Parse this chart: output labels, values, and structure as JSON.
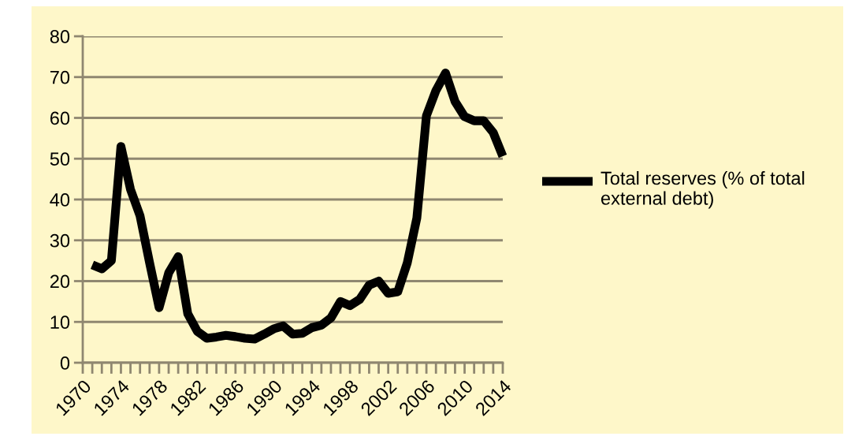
{
  "chart_data": {
    "type": "line",
    "x": [
      1971,
      1972,
      1973,
      1974,
      1975,
      1976,
      1977,
      1978,
      1979,
      1980,
      1981,
      1982,
      1983,
      1984,
      1985,
      1986,
      1987,
      1988,
      1989,
      1990,
      1991,
      1992,
      1993,
      1994,
      1995,
      1996,
      1997,
      1998,
      1999,
      2000,
      2001,
      2002,
      2003,
      2004,
      2005,
      2006,
      2007,
      2008,
      2009,
      2010,
      2011,
      2012,
      2013,
      2014
    ],
    "series": [
      {
        "name": "Total reserves (% of total external debt)",
        "color": "#000000",
        "values": [
          24,
          23,
          25,
          53,
          42.5,
          36,
          24.5,
          13.5,
          22,
          26,
          12,
          7.7,
          6,
          6.3,
          6.7,
          6.4,
          6,
          5.8,
          7,
          8.3,
          9,
          7,
          7.2,
          8.6,
          9.2,
          11,
          15,
          14,
          15.5,
          19,
          20,
          17,
          17.4,
          24.5,
          35.5,
          60.5,
          66.7,
          71,
          64,
          60.3,
          59.3,
          59.3,
          56.4,
          50.6
        ]
      }
    ],
    "xlim": [
      1970,
      2014
    ],
    "xticks": [
      1970,
      {
        "value": 1971,
        "label": null
      },
      {
        "value": 1972,
        "label": null
      },
      {
        "value": 1973,
        "label": null
      },
      1974,
      {
        "value": 1975,
        "label": null
      },
      {
        "value": 1976,
        "label": null
      },
      {
        "value": 1977,
        "label": null
      },
      1978,
      {
        "value": 1979,
        "label": null
      },
      {
        "value": 1980,
        "label": null
      },
      {
        "value": 1981,
        "label": null
      },
      1982,
      {
        "value": 1983,
        "label": null
      },
      {
        "value": 1984,
        "label": null
      },
      {
        "value": 1985,
        "label": null
      },
      1986,
      {
        "value": 1987,
        "label": null
      },
      {
        "value": 1988,
        "label": null
      },
      {
        "value": 1989,
        "label": null
      },
      1990,
      {
        "value": 1991,
        "label": null
      },
      {
        "value": 1992,
        "label": null
      },
      {
        "value": 1993,
        "label": null
      },
      1994,
      {
        "value": 1995,
        "label": null
      },
      {
        "value": 1996,
        "label": null
      },
      {
        "value": 1997,
        "label": null
      },
      1998,
      {
        "value": 1999,
        "label": null
      },
      {
        "value": 2000,
        "label": null
      },
      {
        "value": 2001,
        "label": null
      },
      2002,
      {
        "value": 2003,
        "label": null
      },
      {
        "value": 2004,
        "label": null
      },
      {
        "value": 2005,
        "label": null
      },
      2006,
      {
        "value": 2007,
        "label": null
      },
      {
        "value": 2008,
        "label": null
      },
      {
        "value": 2009,
        "label": null
      },
      2010,
      {
        "value": 2011,
        "label": null
      },
      {
        "value": 2012,
        "label": null
      },
      {
        "value": 2013,
        "label": null
      },
      2014
    ],
    "ylim": [
      0,
      80
    ],
    "yticks": [
      0,
      10,
      20,
      30,
      40,
      50,
      60,
      70,
      80
    ],
    "grid": "y",
    "legend": "right",
    "marker": "none",
    "line_style": "solid"
  }
}
